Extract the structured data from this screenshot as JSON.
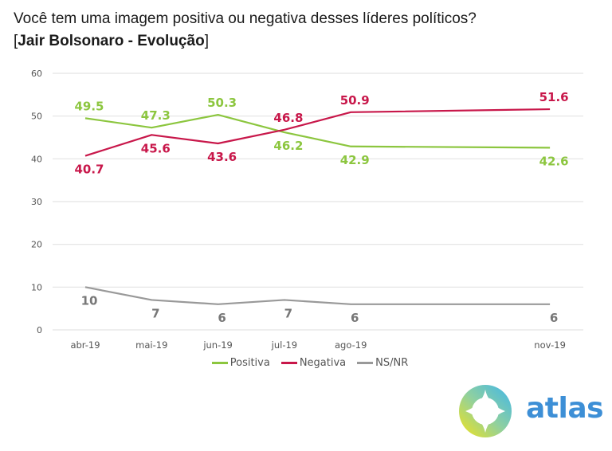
{
  "title": {
    "line1": "Você tem uma imagem positiva ou negativa desses líderes políticos?",
    "line2_open": "[",
    "line2_bold": "Jair Bolsonaro - Evolução",
    "line2_close": "]"
  },
  "logo": {
    "text": "atlas",
    "icon": "compass-star-icon"
  },
  "chart_data": {
    "type": "line",
    "title": "Você tem uma imagem positiva ou negativa desses líderes políticos? [Jair Bolsonaro - Evolução]",
    "xlabel": "",
    "ylabel": "",
    "categories": [
      "abr-19",
      "mai-19",
      "jun-19",
      "jul-19",
      "ago-19",
      "nov-19"
    ],
    "x_month_index": [
      0,
      1,
      2,
      3,
      4,
      7
    ],
    "ylim": [
      0,
      60
    ],
    "yticks": [
      0,
      10,
      20,
      30,
      40,
      50,
      60
    ],
    "grid": true,
    "legend_position": "bottom",
    "series": [
      {
        "name": "Positiva",
        "color": "#8cc63f",
        "values": [
          49.5,
          47.3,
          50.3,
          46.2,
          42.9,
          42.6
        ],
        "labels": [
          "49.5",
          "47.3",
          "50.3",
          "46.2",
          "42.9",
          "42.6"
        ],
        "label_pos": [
          "above",
          "above",
          "above",
          "below",
          "below",
          "below"
        ]
      },
      {
        "name": "Negativa",
        "color": "#c8174a",
        "values": [
          40.7,
          45.6,
          43.6,
          46.8,
          50.9,
          51.6
        ],
        "labels": [
          "40.7",
          "45.6",
          "43.6",
          "46.8",
          "50.9",
          "51.6"
        ],
        "label_pos": [
          "below",
          "below",
          "below",
          "above",
          "above",
          "above"
        ]
      },
      {
        "name": "NS/NR",
        "color": "#999999",
        "values": [
          10,
          7,
          6,
          7,
          6,
          6
        ],
        "labels": [
          "10",
          "7",
          "6",
          "7",
          "6",
          "6"
        ],
        "label_pos": [
          "below",
          "below",
          "below",
          "below",
          "below",
          "below"
        ]
      }
    ]
  }
}
